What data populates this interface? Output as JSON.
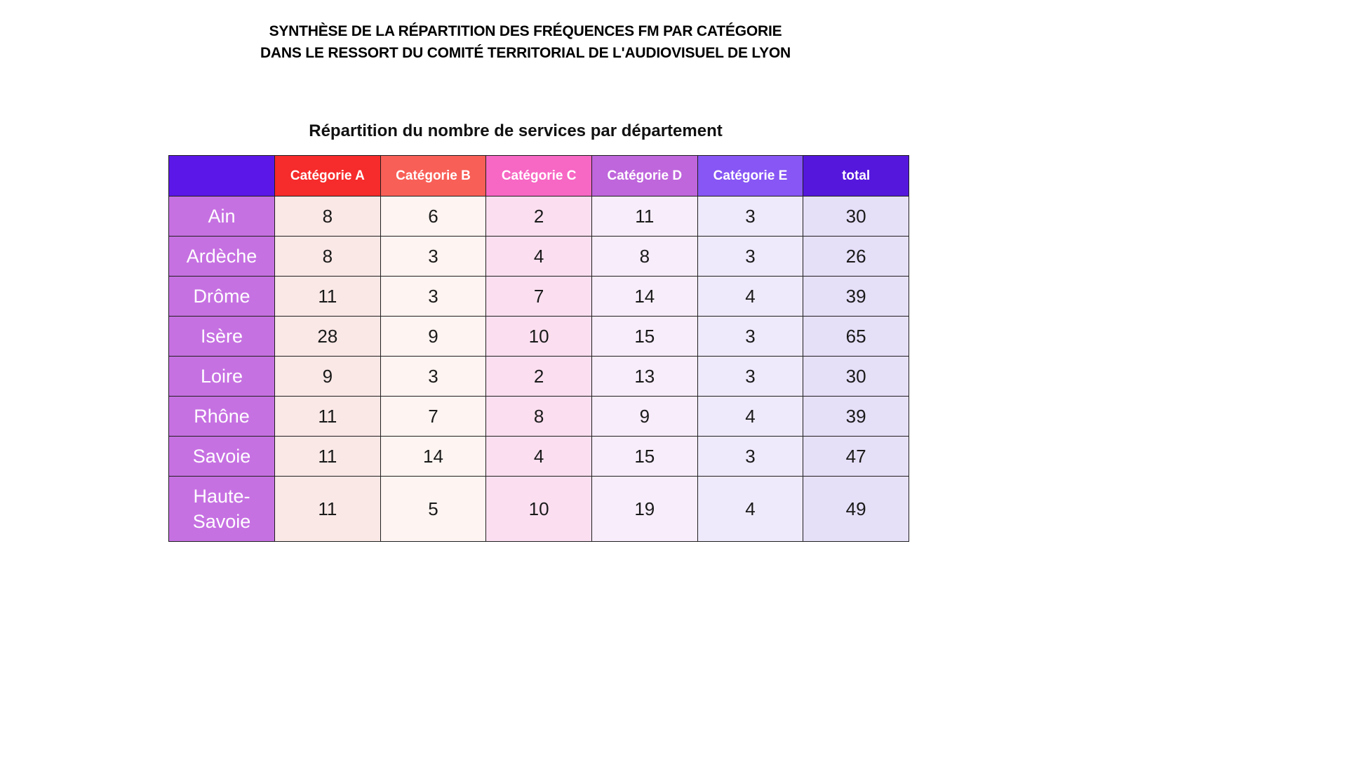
{
  "header": {
    "title_line1": "SYNTHÈSE DE LA RÉPARTITION DES FRÉQUENCES FM PAR CATÉGORIE",
    "title_line2": "DANS LE RESSORT DU COMITÉ TERRITORIAL DE L'AUDIOVISUEL DE LYON"
  },
  "chart_data": {
    "type": "table",
    "title": "Répartition du nombre de services par département",
    "columns": [
      "",
      "Catégorie A",
      "Catégorie B",
      "Catégorie C",
      "Catégorie D",
      "Catégorie E",
      "total"
    ],
    "rows": [
      {
        "label": "Ain",
        "values": [
          8,
          6,
          2,
          11,
          3,
          30
        ]
      },
      {
        "label": "Ardèche",
        "values": [
          8,
          3,
          4,
          8,
          3,
          26
        ]
      },
      {
        "label": "Drôme",
        "values": [
          11,
          3,
          7,
          14,
          4,
          39
        ]
      },
      {
        "label": "Isère",
        "values": [
          28,
          9,
          10,
          15,
          3,
          65
        ]
      },
      {
        "label": "Loire",
        "values": [
          9,
          3,
          2,
          13,
          3,
          30
        ]
      },
      {
        "label": "Rhône",
        "values": [
          11,
          7,
          8,
          9,
          4,
          39
        ]
      },
      {
        "label": "Savoie",
        "values": [
          11,
          14,
          4,
          15,
          3,
          47
        ]
      },
      {
        "label": "Haute-Savoie",
        "values": [
          11,
          5,
          10,
          19,
          4,
          49
        ]
      }
    ]
  },
  "colors": {
    "corner-header": "#5b17e8",
    "header-a": "#f62b2b",
    "header-b": "#f85f57",
    "header-c": "#f767c4",
    "header-d": "#bf66dc",
    "header-e": "#8756f4",
    "header-total": "#5517dc",
    "row-label": "#c671e2",
    "cell-a": "#fae8e6",
    "cell-b": "#fef4f1",
    "cell-c": "#fbdff0",
    "cell-d": "#f8edfb",
    "cell-e": "#efeafb",
    "cell-total": "#e6dff8",
    "grid-line": "#1f1f1f",
    "header-text": "#ffffff",
    "body-text": "#1a1a1a"
  }
}
